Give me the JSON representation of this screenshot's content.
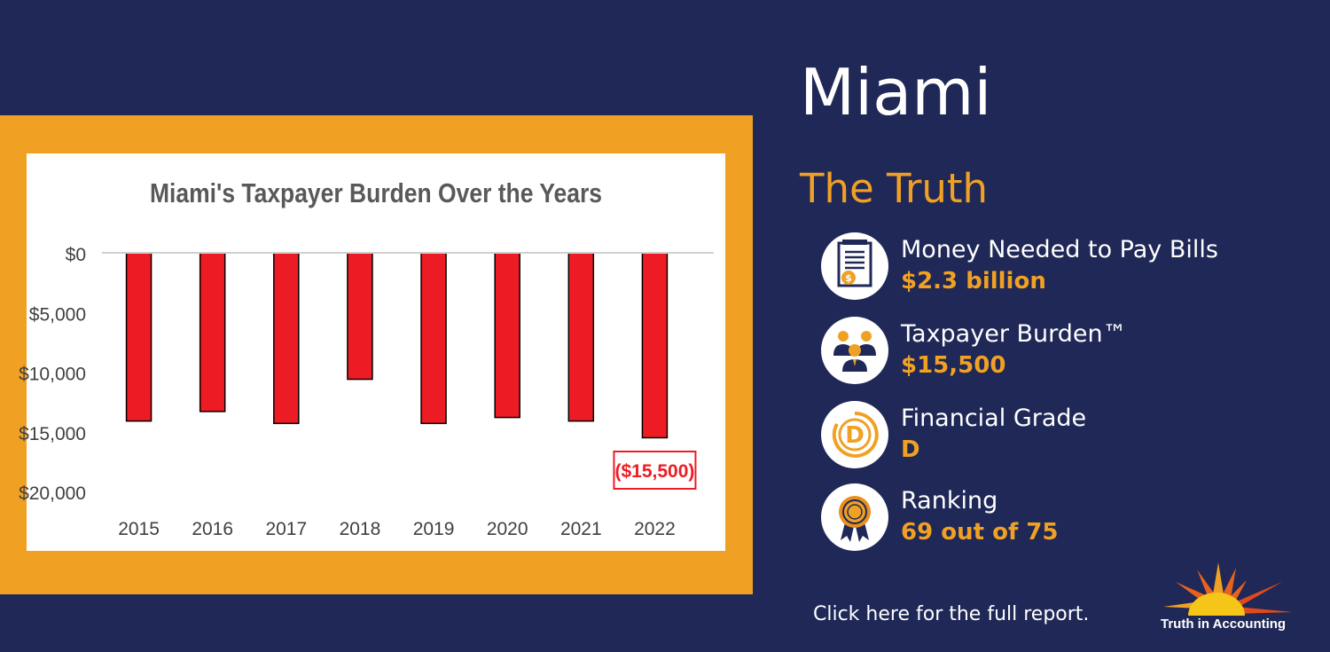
{
  "city": "Miami",
  "section_title": "The Truth",
  "stats": [
    {
      "label": "Money Needed to Pay Bills",
      "value": "$2.3 billion",
      "icon": "bill-icon"
    },
    {
      "label": "Taxpayer Burden™",
      "value": "$15,500",
      "icon": "taxpayers-icon"
    },
    {
      "label": "Financial Grade",
      "value": "D",
      "icon": "grade-d-icon"
    },
    {
      "label": "Ranking",
      "value": "69 out of 75",
      "icon": "ribbon-award-icon"
    }
  ],
  "report_link": "Click here for the full report.",
  "logo_text": "Truth in Accounting",
  "colors": {
    "background": "#1f2857",
    "accent": "#f0a124",
    "bar": "#ed1c24",
    "white": "#ffffff"
  },
  "chart_data": {
    "type": "bar",
    "title": "Miami's Taxpayer Burden Over the Years",
    "categories": [
      "2015",
      "2016",
      "2017",
      "2018",
      "2019",
      "2020",
      "2021",
      "2022"
    ],
    "values": [
      -14100,
      -13300,
      -14300,
      -10600,
      -14300,
      -13800,
      -14100,
      -15500
    ],
    "ylim": [
      -20000,
      0
    ],
    "yticks": [
      0,
      -5000,
      -10000,
      -15000,
      -20000
    ],
    "ytick_labels": [
      "$0",
      "$5,000",
      "$10,000",
      "$15,000",
      "$20,000"
    ],
    "annotation": {
      "category": "2022",
      "text": "($15,500)"
    },
    "grid": false,
    "legend": "none"
  }
}
